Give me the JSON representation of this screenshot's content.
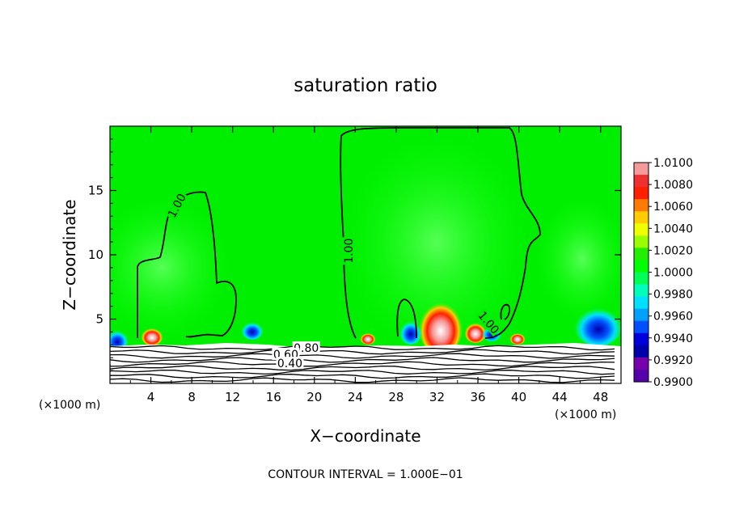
{
  "chart_data": {
    "type": "heatmap",
    "title": "saturation ratio",
    "xlabel": "X−coordinate",
    "ylabel": "Z−coordinate",
    "x_unit_left": "(×1000 m)",
    "x_unit_right": "(×1000 m)",
    "xlim": [
      0,
      50
    ],
    "ylim": [
      0,
      20
    ],
    "x_ticks": [
      4,
      8,
      12,
      16,
      20,
      24,
      28,
      32,
      36,
      40,
      44,
      48
    ],
    "y_ticks": [
      5,
      10,
      15
    ],
    "contour_labels": [
      {
        "text": "1.00",
        "x": 6.6,
        "z": 13.8,
        "angle": -62
      },
      {
        "text": "1.00",
        "x": 23.4,
        "z": 10.3,
        "angle": -90
      },
      {
        "text": "1.00",
        "x": 37.0,
        "z": 4.7,
        "angle": 50
      },
      {
        "text": "0.80",
        "x": 19.2,
        "z": 2.7,
        "angle": 0
      },
      {
        "text": "0.60",
        "x": 17.2,
        "z": 2.2,
        "angle": 0
      },
      {
        "text": "0.40",
        "x": 17.6,
        "z": 1.5,
        "angle": 0
      }
    ],
    "colorbar": {
      "labels": [
        "1.0100",
        "1.0080",
        "1.0060",
        "1.0040",
        "1.0020",
        "1.0000",
        "0.9980",
        "0.9960",
        "0.9940",
        "0.9920",
        "0.9900"
      ],
      "colors": [
        "#f59a9a",
        "#ee3030",
        "#ff2000",
        "#ff7a00",
        "#ffcc00",
        "#f0ff00",
        "#99ff00",
        "#22ee00",
        "#00ff00",
        "#00ff55",
        "#00ffbb",
        "#00e0ff",
        "#00a0ff",
        "#0050ff",
        "#0000dd",
        "#0000aa",
        "#7700aa",
        "#5500aa"
      ]
    },
    "footer": "CONTOUR INTERVAL = 1.000E−01"
  }
}
